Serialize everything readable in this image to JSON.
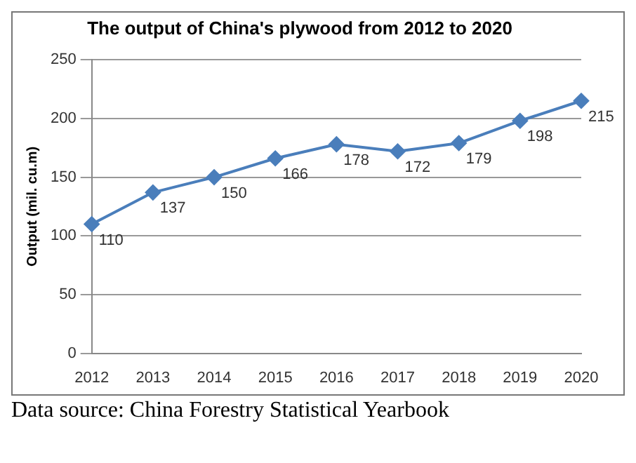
{
  "chart_data": {
    "type": "line",
    "title": "The output of China's plywood from 2012 to 2020",
    "ylabel": "Output (mil. cu.m)",
    "categories": [
      "2012",
      "2013",
      "2014",
      "2015",
      "2016",
      "2017",
      "2018",
      "2019",
      "2020"
    ],
    "series": [
      {
        "color": "#4a7ebb",
        "values": [
          110,
          137,
          150,
          166,
          178,
          172,
          179,
          198,
          215
        ]
      }
    ],
    "ylim": [
      0,
      250
    ],
    "yticks": [
      0,
      50,
      100,
      150,
      200,
      250
    ],
    "grid": "y",
    "legend": false,
    "marker": "diamond",
    "line_style": "solid",
    "data_labels": true,
    "annotations": [
      "Data source: China Forestry Statistical Yearbook"
    ]
  }
}
